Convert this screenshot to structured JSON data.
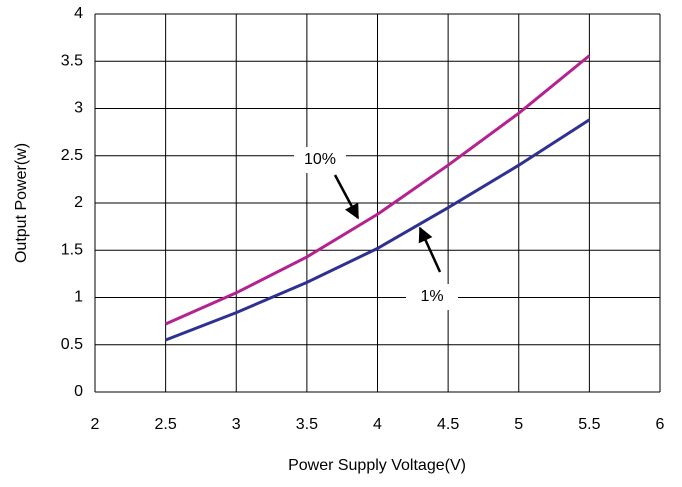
{
  "chart_data": {
    "type": "line",
    "x_label": "Power Supply Voltage(V)",
    "y_label": "Output Power(w)",
    "x": [
      2.5,
      3,
      3.5,
      4,
      4.5,
      5,
      5.5
    ],
    "series": [
      {
        "name": "10%",
        "color": "#b3228e",
        "values": [
          0.72,
          1.05,
          1.43,
          1.88,
          2.4,
          2.95,
          3.56
        ]
      },
      {
        "name": "1%",
        "color": "#2e3192",
        "values": [
          0.55,
          0.84,
          1.16,
          1.52,
          1.95,
          2.4,
          2.88
        ]
      }
    ],
    "xlim": [
      2,
      6
    ],
    "xticks": [
      2,
      2.5,
      3,
      3.5,
      4,
      4.5,
      5,
      5.5,
      6
    ],
    "ylim": [
      0,
      4
    ],
    "yticks": [
      0,
      0.5,
      1,
      1.5,
      2,
      2.5,
      3,
      3.5,
      4
    ],
    "grid": true
  }
}
